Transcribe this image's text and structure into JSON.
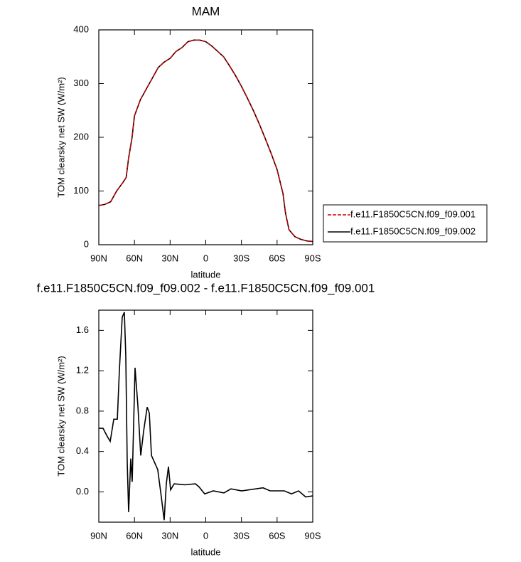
{
  "chart_data": [
    {
      "type": "line",
      "title": "MAM",
      "xlabel": "latitude",
      "ylabel": "TOM clearsky net SW (W/m²)",
      "x": [
        90,
        85,
        80,
        75,
        70,
        67,
        65,
        62,
        60,
        55,
        50,
        45,
        40,
        35,
        30,
        25,
        20,
        15,
        10,
        5,
        0,
        -5,
        -10,
        -15,
        -20,
        -25,
        -30,
        -35,
        -40,
        -45,
        -50,
        -55,
        -60,
        -65,
        -67,
        -70,
        -75,
        -80,
        -85,
        -90
      ],
      "series": [
        {
          "name": "f.e11.F1850C5CN.f09_f09.001",
          "color": "#cc0000",
          "style": "dashed",
          "values": [
            73,
            75,
            80,
            100,
            115,
            125,
            160,
            200,
            240,
            270,
            290,
            310,
            330,
            340,
            347,
            360,
            367,
            378,
            381,
            381,
            378,
            370,
            360,
            350,
            333,
            315,
            295,
            273,
            250,
            225,
            198,
            170,
            140,
            95,
            60,
            28,
            15,
            10,
            7,
            6
          ]
        },
        {
          "name": "f.e11.F1850C5CN.f09_f09.002",
          "color": "#000000",
          "style": "solid",
          "values": [
            73,
            75,
            80,
            100,
            115,
            125,
            160,
            200,
            240,
            270,
            290,
            310,
            330,
            340,
            347,
            360,
            367,
            378,
            381,
            381,
            378,
            370,
            360,
            350,
            333,
            315,
            295,
            273,
            250,
            225,
            198,
            170,
            140,
            95,
            60,
            28,
            15,
            10,
            7,
            6
          ]
        }
      ],
      "xlim": [
        90,
        -90
      ],
      "xticks": [
        {
          "value": 90,
          "label": "90N"
        },
        {
          "value": 60,
          "label": "60N"
        },
        {
          "value": 30,
          "label": "30N"
        },
        0,
        {
          "value": -30,
          "label": "30S"
        },
        {
          "value": -60,
          "label": "60S"
        },
        {
          "value": -90,
          "label": "90S"
        }
      ],
      "ylim": [
        0,
        400
      ],
      "yticks": [
        0,
        100,
        200,
        300,
        400
      ],
      "legend": "right"
    },
    {
      "type": "line",
      "title": "f.e11.F1850C5CN.f09_f09.002 - f.e11.F1850C5CN.f09_f09.001",
      "xlabel": "latitude",
      "ylabel": "TOM clearsky net SW (W/m²)",
      "x": [
        90,
        86.4,
        83.4,
        80.4,
        77.4,
        74.4,
        72.7,
        70.3,
        68.5,
        67.3,
        66.1,
        64.9,
        63.1,
        61.9,
        59.5,
        57.1,
        54.7,
        52.3,
        49.3,
        47.5,
        45.7,
        43.4,
        40.4,
        37.4,
        35,
        33.2,
        31.4,
        29.6,
        26.6,
        17.6,
        8.7,
        5.7,
        0.9,
        -6.3,
        -15.3,
        -21.2,
        -30.2,
        -48.2,
        -54.1,
        -66.1,
        -72.1,
        -78.1,
        -84,
        -90
      ],
      "values": [
        0.63,
        0.63,
        0.56,
        0.5,
        0.72,
        0.72,
        1.2,
        1.73,
        1.78,
        1.35,
        0.3,
        -0.2,
        0.33,
        0.1,
        1.23,
        0.85,
        0.36,
        0.6,
        0.84,
        0.78,
        0.36,
        0.3,
        0.22,
        -0.05,
        -0.28,
        0.08,
        0.25,
        0.02,
        0.08,
        0.07,
        0.08,
        0.05,
        -0.02,
        0.01,
        -0.01,
        0.03,
        0.01,
        0.04,
        0.01,
        0.01,
        -0.02,
        0.01,
        -0.05,
        -0.04
      ],
      "color": "#000000",
      "xlim": [
        90,
        -90
      ],
      "xticks": [
        {
          "value": 90,
          "label": "90N"
        },
        {
          "value": 60,
          "label": "60N"
        },
        {
          "value": 30,
          "label": "30N"
        },
        0,
        {
          "value": -30,
          "label": "30S"
        },
        {
          "value": -60,
          "label": "60S"
        },
        {
          "value": -90,
          "label": "90S"
        }
      ],
      "ylim": [
        -0.3,
        1.8
      ],
      "yticks": [
        {
          "value": 0,
          "label": "0.0"
        },
        0.4,
        0.8,
        1.2,
        1.6
      ]
    }
  ]
}
